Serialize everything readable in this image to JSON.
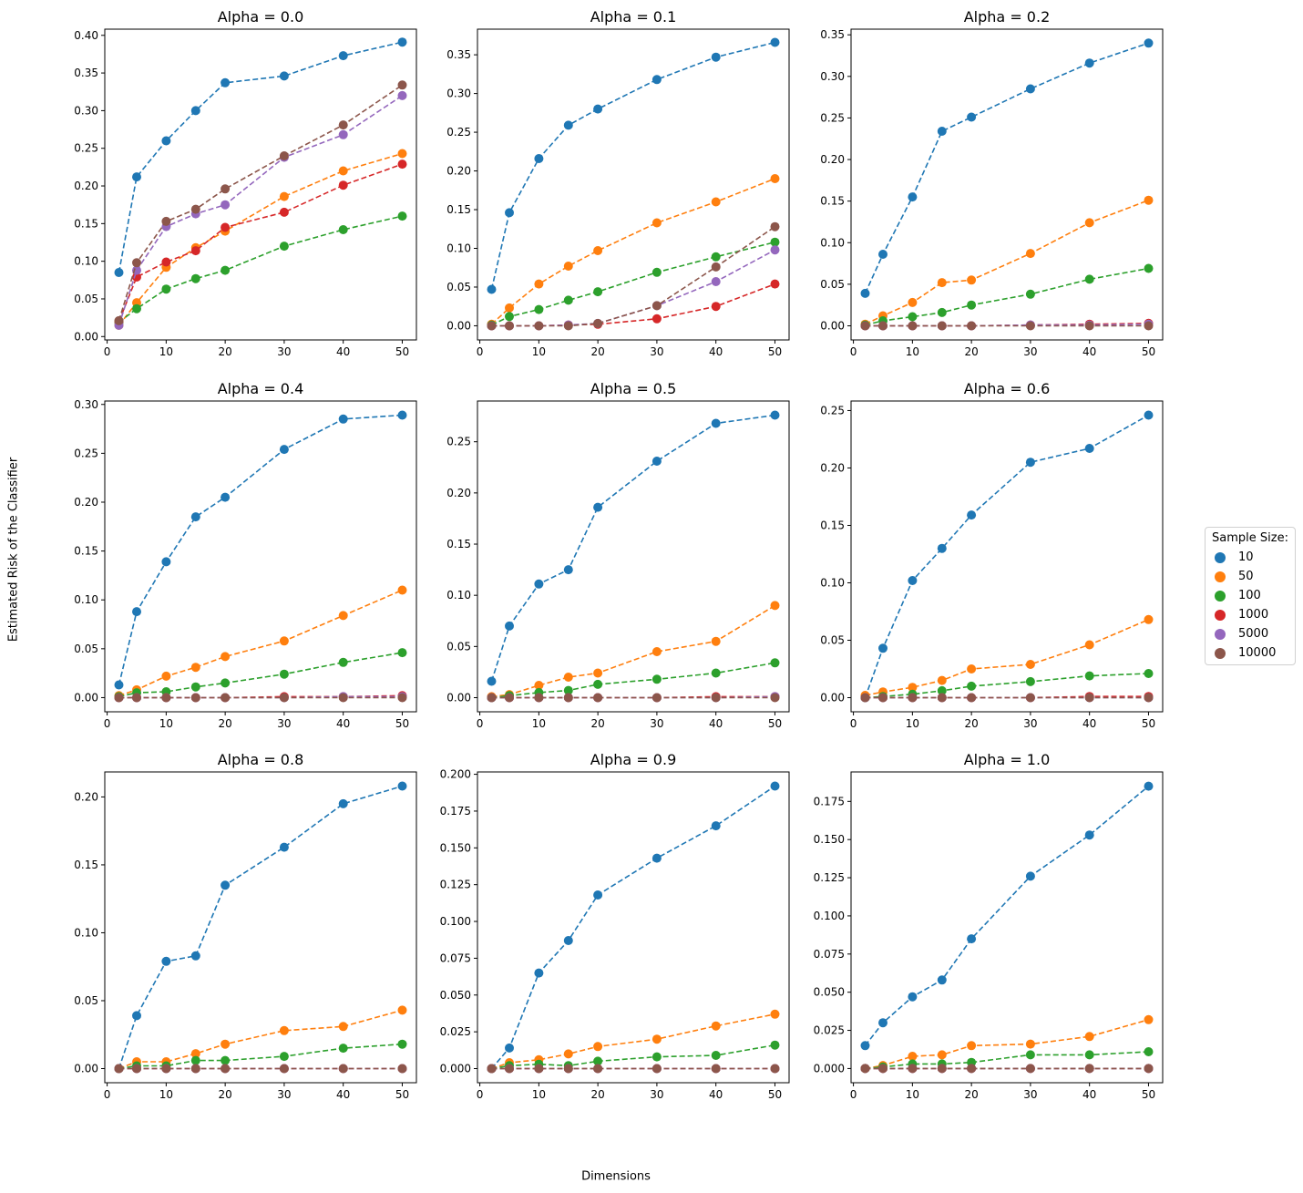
{
  "figure": {
    "xlabel": "Dimensions",
    "ylabel": "Estimated Risk of the Classifier",
    "legend_title": "Sample Size:"
  },
  "chart_data": {
    "type": "line",
    "x": [
      2,
      5,
      10,
      15,
      20,
      30,
      40,
      50
    ],
    "series_names": [
      "10",
      "50",
      "100",
      "1000",
      "5000",
      "10000"
    ],
    "colors": [
      "#1f77b4",
      "#ff7f0e",
      "#2ca02c",
      "#d62728",
      "#9467bd",
      "#8c564b"
    ],
    "subplots": [
      {
        "title": "Alpha = 0.0",
        "ylim": [
          -0.0045,
          0.4082
        ],
        "yticks": [
          "0.00",
          "0.05",
          "0.10",
          "0.15",
          "0.20",
          "0.25",
          "0.30",
          "0.35",
          "0.40"
        ],
        "series": [
          {
            "name": "10",
            "values": [
              0.085,
              0.212,
              0.26,
              0.3,
              0.337,
              0.346,
              0.373,
              0.391
            ]
          },
          {
            "name": "50",
            "values": [
              0.015,
              0.045,
              0.092,
              0.118,
              0.14,
              0.186,
              0.22,
              0.243
            ]
          },
          {
            "name": "100",
            "values": [
              0.019,
              0.037,
              0.063,
              0.077,
              0.088,
              0.12,
              0.142,
              0.16
            ]
          },
          {
            "name": "1000",
            "values": [
              0.02,
              0.079,
              0.099,
              0.114,
              0.145,
              0.165,
              0.201,
              0.229
            ]
          },
          {
            "name": "5000",
            "values": [
              0.015,
              0.088,
              0.146,
              0.163,
              0.175,
              0.238,
              0.268,
              0.32
            ]
          },
          {
            "name": "10000",
            "values": [
              0.021,
              0.098,
              0.153,
              0.169,
              0.196,
              0.24,
              0.281,
              0.334
            ]
          }
        ]
      },
      {
        "title": "Alpha = 0.1",
        "ylim": [
          -0.0183,
          0.3831
        ],
        "yticks": [
          "0.00",
          "0.05",
          "0.10",
          "0.15",
          "0.20",
          "0.25",
          "0.30",
          "0.35"
        ],
        "series": [
          {
            "name": "10",
            "values": [
              0.047,
              0.146,
              0.216,
              0.259,
              0.28,
              0.318,
              0.347,
              0.366
            ]
          },
          {
            "name": "50",
            "values": [
              0.002,
              0.023,
              0.054,
              0.077,
              0.097,
              0.133,
              0.16,
              0.19
            ]
          },
          {
            "name": "100",
            "values": [
              0.001,
              0.012,
              0.021,
              0.033,
              0.044,
              0.069,
              0.089,
              0.108
            ]
          },
          {
            "name": "1000",
            "values": [
              0.0,
              0.0,
              0.0,
              0.001,
              0.002,
              0.009,
              0.025,
              0.054
            ]
          },
          {
            "name": "5000",
            "values": [
              0.0,
              0.0,
              0.0,
              0.001,
              0.003,
              0.026,
              0.057,
              0.098
            ]
          },
          {
            "name": "10000",
            "values": [
              0.0,
              0.0,
              0.0,
              0.0,
              0.003,
              0.026,
              0.076,
              0.128
            ]
          }
        ]
      },
      {
        "title": "Alpha = 0.2",
        "ylim": [
          -0.017,
          0.3568
        ],
        "yticks": [
          "0.00",
          "0.05",
          "0.10",
          "0.15",
          "0.20",
          "0.25",
          "0.30",
          "0.35"
        ],
        "series": [
          {
            "name": "10",
            "values": [
              0.039,
              0.086,
              0.155,
              0.234,
              0.251,
              0.285,
              0.316,
              0.34
            ]
          },
          {
            "name": "50",
            "values": [
              0.002,
              0.012,
              0.028,
              0.052,
              0.055,
              0.087,
              0.124,
              0.151
            ]
          },
          {
            "name": "100",
            "values": [
              0.001,
              0.006,
              0.011,
              0.016,
              0.025,
              0.038,
              0.056,
              0.069
            ]
          },
          {
            "name": "1000",
            "values": [
              0.0,
              0.0,
              0.0,
              0.0,
              0.0,
              0.001,
              0.002,
              0.003
            ]
          },
          {
            "name": "5000",
            "values": [
              0.0,
              0.0,
              0.0,
              0.0,
              0.0,
              0.001,
              0.001,
              0.002
            ]
          },
          {
            "name": "10000",
            "values": [
              0.0,
              0.0,
              0.0,
              0.0,
              0.0,
              0.0,
              0.0,
              0.0
            ]
          }
        ]
      },
      {
        "title": "Alpha = 0.4",
        "ylim": [
          -0.0145,
          0.3035
        ],
        "yticks": [
          "0.00",
          "0.05",
          "0.10",
          "0.15",
          "0.20",
          "0.25",
          "0.30"
        ],
        "series": [
          {
            "name": "10",
            "values": [
              0.013,
              0.088,
              0.139,
              0.185,
              0.205,
              0.254,
              0.285,
              0.289
            ]
          },
          {
            "name": "50",
            "values": [
              0.002,
              0.008,
              0.022,
              0.031,
              0.042,
              0.058,
              0.084,
              0.11
            ]
          },
          {
            "name": "100",
            "values": [
              0.001,
              0.005,
              0.006,
              0.011,
              0.015,
              0.024,
              0.036,
              0.046
            ]
          },
          {
            "name": "1000",
            "values": [
              0.0,
              0.0,
              0.0,
              0.0,
              0.0,
              0.001,
              0.001,
              0.002
            ]
          },
          {
            "name": "5000",
            "values": [
              0.0,
              0.0,
              0.0,
              0.0,
              0.0,
              0.0,
              0.001,
              0.001
            ]
          },
          {
            "name": "10000",
            "values": [
              0.0,
              0.0,
              0.0,
              0.0,
              0.0,
              0.0,
              0.0,
              0.0
            ]
          }
        ]
      },
      {
        "title": "Alpha = 0.5",
        "ylim": [
          -0.0138,
          0.2898
        ],
        "yticks": [
          "0.00",
          "0.05",
          "0.10",
          "0.15",
          "0.20",
          "0.25"
        ],
        "series": [
          {
            "name": "10",
            "values": [
              0.016,
              0.07,
              0.111,
              0.125,
              0.186,
              0.231,
              0.268,
              0.276
            ]
          },
          {
            "name": "50",
            "values": [
              0.001,
              0.003,
              0.012,
              0.02,
              0.024,
              0.045,
              0.055,
              0.09
            ]
          },
          {
            "name": "100",
            "values": [
              0.0,
              0.002,
              0.005,
              0.007,
              0.013,
              0.018,
              0.024,
              0.034
            ]
          },
          {
            "name": "1000",
            "values": [
              0.0,
              0.0,
              0.0,
              0.0,
              0.0,
              0.0,
              0.001,
              0.001
            ]
          },
          {
            "name": "5000",
            "values": [
              0.0,
              0.0,
              0.0,
              0.0,
              0.0,
              0.0,
              0.0,
              0.001
            ]
          },
          {
            "name": "10000",
            "values": [
              0.0,
              0.0,
              0.0,
              0.0,
              0.0,
              0.0,
              0.0,
              0.0
            ]
          }
        ]
      },
      {
        "title": "Alpha = 0.6",
        "ylim": [
          -0.0123,
          0.2583
        ],
        "yticks": [
          "0.00",
          "0.05",
          "0.10",
          "0.15",
          "0.20",
          "0.25"
        ],
        "series": [
          {
            "name": "10",
            "values": [
              0.0,
              0.043,
              0.102,
              0.13,
              0.159,
              0.205,
              0.217,
              0.246
            ]
          },
          {
            "name": "50",
            "values": [
              0.002,
              0.005,
              0.009,
              0.015,
              0.025,
              0.029,
              0.046,
              0.068
            ]
          },
          {
            "name": "100",
            "values": [
              0.0,
              0.001,
              0.003,
              0.006,
              0.01,
              0.014,
              0.019,
              0.021
            ]
          },
          {
            "name": "1000",
            "values": [
              0.0,
              0.0,
              0.0,
              0.0,
              0.0,
              0.0,
              0.001,
              0.001
            ]
          },
          {
            "name": "5000",
            "values": [
              0.0,
              0.0,
              0.0,
              0.0,
              0.0,
              0.0,
              0.0,
              0.0
            ]
          },
          {
            "name": "10000",
            "values": [
              0.0,
              0.0,
              0.0,
              0.0,
              0.0,
              0.0,
              0.0,
              0.0
            ]
          }
        ]
      },
      {
        "title": "Alpha = 0.8",
        "ylim": [
          -0.0104,
          0.2184
        ],
        "yticks": [
          "0.00",
          "0.05",
          "0.10",
          "0.15",
          "0.20"
        ],
        "series": [
          {
            "name": "10",
            "values": [
              0.0,
              0.039,
              0.079,
              0.083,
              0.135,
              0.163,
              0.195,
              0.208
            ]
          },
          {
            "name": "50",
            "values": [
              0.0,
              0.005,
              0.005,
              0.011,
              0.018,
              0.028,
              0.031,
              0.043
            ]
          },
          {
            "name": "100",
            "values": [
              0.0,
              0.002,
              0.002,
              0.006,
              0.006,
              0.009,
              0.015,
              0.018
            ]
          },
          {
            "name": "1000",
            "values": [
              0.0,
              0.0,
              0.0,
              0.0,
              0.0,
              0.0,
              0.0,
              0.0
            ]
          },
          {
            "name": "5000",
            "values": [
              0.0,
              0.0,
              0.0,
              0.0,
              0.0,
              0.0,
              0.0,
              0.0
            ]
          },
          {
            "name": "10000",
            "values": [
              0.0,
              0.0,
              0.0,
              0.0,
              0.0,
              0.0,
              0.0,
              0.0
            ]
          }
        ]
      },
      {
        "title": "Alpha = 0.9",
        "ylim": [
          -0.0096,
          0.2016
        ],
        "yticks": [
          "0.000",
          "0.025",
          "0.050",
          "0.075",
          "0.100",
          "0.125",
          "0.150",
          "0.175",
          "0.200"
        ],
        "series": [
          {
            "name": "10",
            "values": [
              0.0,
              0.014,
              0.065,
              0.087,
              0.118,
              0.143,
              0.165,
              0.192
            ]
          },
          {
            "name": "50",
            "values": [
              0.0,
              0.004,
              0.006,
              0.01,
              0.015,
              0.02,
              0.029,
              0.037
            ]
          },
          {
            "name": "100",
            "values": [
              0.0,
              0.002,
              0.003,
              0.002,
              0.005,
              0.008,
              0.009,
              0.016
            ]
          },
          {
            "name": "1000",
            "values": [
              0.0,
              0.0,
              0.0,
              0.0,
              0.0,
              0.0,
              0.0,
              0.0
            ]
          },
          {
            "name": "5000",
            "values": [
              0.0,
              0.0,
              0.0,
              0.0,
              0.0,
              0.0,
              0.0,
              0.0
            ]
          },
          {
            "name": "10000",
            "values": [
              0.0,
              0.0,
              0.0,
              0.0,
              0.0,
              0.0,
              0.0,
              0.0
            ]
          }
        ]
      },
      {
        "title": "Alpha = 1.0",
        "ylim": [
          -0.0093,
          0.1943
        ],
        "yticks": [
          "0.000",
          "0.025",
          "0.050",
          "0.075",
          "0.100",
          "0.125",
          "0.150",
          "0.175"
        ],
        "series": [
          {
            "name": "10",
            "values": [
              0.015,
              0.03,
              0.047,
              0.058,
              0.085,
              0.126,
              0.153,
              0.185
            ]
          },
          {
            "name": "50",
            "values": [
              0.0,
              0.002,
              0.008,
              0.009,
              0.015,
              0.016,
              0.021,
              0.032
            ]
          },
          {
            "name": "100",
            "values": [
              0.0,
              0.001,
              0.003,
              0.003,
              0.004,
              0.009,
              0.009,
              0.011
            ]
          },
          {
            "name": "1000",
            "values": [
              0.0,
              0.0,
              0.0,
              0.0,
              0.0,
              0.0,
              0.0,
              0.0
            ]
          },
          {
            "name": "5000",
            "values": [
              0.0,
              0.0,
              0.0,
              0.0,
              0.0,
              0.0,
              0.0,
              0.0
            ]
          },
          {
            "name": "10000",
            "values": [
              0.0,
              0.0,
              0.0,
              0.0,
              0.0,
              0.0,
              0.0,
              0.0
            ]
          }
        ]
      }
    ]
  }
}
